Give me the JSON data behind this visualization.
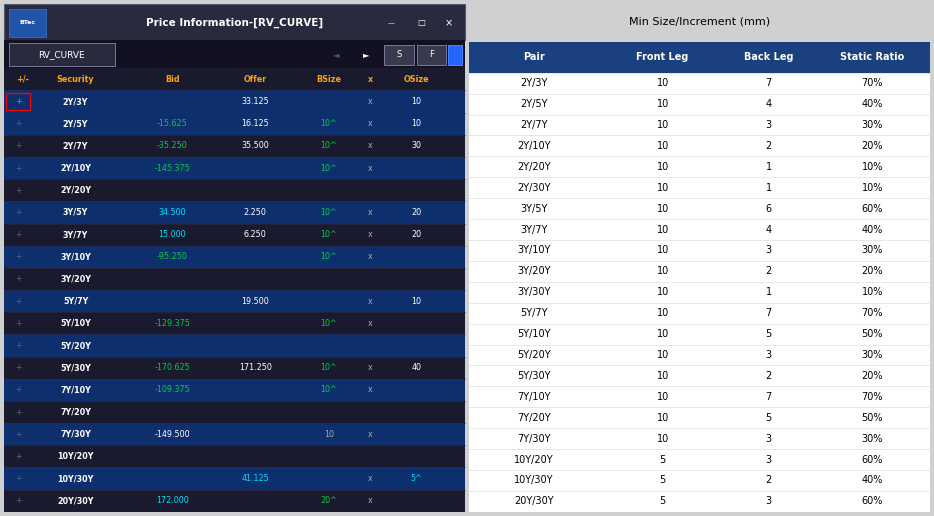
{
  "left_table": {
    "title": "Price Information-[RV_CURVE]",
    "tab_label": "RV_CURVE",
    "columns": [
      "+/-",
      "Security",
      "Bid",
      "Offer",
      "BSize",
      "x",
      "OSize"
    ],
    "rows": [
      {
        "security": "2Y/3Y",
        "bid": "",
        "offer": "33.125",
        "bsize": "",
        "x": "x",
        "osize": "10",
        "bid_color": "green",
        "offer_color": "white",
        "bsize_color": "green",
        "osize_color": "white",
        "row_bg": "blue"
      },
      {
        "security": "2Y/5Y",
        "bid": "-15.625",
        "offer": "16.125",
        "bsize": "10^",
        "x": "x",
        "osize": "10",
        "bid_color": "green",
        "offer_color": "white",
        "bsize_color": "green",
        "osize_color": "white",
        "row_bg": "blue"
      },
      {
        "security": "2Y/7Y",
        "bid": "-35.250",
        "offer": "35.500",
        "bsize": "10^",
        "x": "x",
        "osize": "30",
        "bid_color": "green",
        "offer_color": "white",
        "bsize_color": "green",
        "osize_color": "white",
        "row_bg": "dark"
      },
      {
        "security": "2Y/10Y",
        "bid": "-145.375",
        "offer": "",
        "bsize": "10^",
        "x": "x",
        "osize": "",
        "bid_color": "green",
        "offer_color": "white",
        "bsize_color": "green",
        "osize_color": "white",
        "row_bg": "blue"
      },
      {
        "security": "2Y/20Y",
        "bid": "",
        "offer": "",
        "bsize": "",
        "x": "",
        "osize": "",
        "bid_color": "white",
        "offer_color": "white",
        "bsize_color": "white",
        "osize_color": "white",
        "row_bg": "dark"
      },
      {
        "security": "3Y/5Y",
        "bid": "34.500",
        "offer": "2.250",
        "bsize": "10^",
        "x": "x",
        "osize": "20",
        "bid_color": "cyan",
        "offer_color": "white",
        "bsize_color": "green",
        "osize_color": "white",
        "row_bg": "blue"
      },
      {
        "security": "3Y/7Y",
        "bid": "15.000",
        "offer": "6.250",
        "bsize": "10^",
        "x": "x",
        "osize": "20",
        "bid_color": "cyan",
        "offer_color": "white",
        "bsize_color": "green",
        "osize_color": "white",
        "row_bg": "dark"
      },
      {
        "security": "3Y/10Y",
        "bid": "-95.250",
        "offer": "",
        "bsize": "10^",
        "x": "x",
        "osize": "",
        "bid_color": "green",
        "offer_color": "white",
        "bsize_color": "green",
        "osize_color": "white",
        "row_bg": "blue"
      },
      {
        "security": "3Y/20Y",
        "bid": "",
        "offer": "",
        "bsize": "",
        "x": "",
        "osize": "",
        "bid_color": "white",
        "offer_color": "white",
        "bsize_color": "white",
        "osize_color": "white",
        "row_bg": "dark"
      },
      {
        "security": "5Y/7Y",
        "bid": "",
        "offer": "19.500",
        "bsize": "",
        "x": "x",
        "osize": "10",
        "bid_color": "white",
        "offer_color": "white",
        "bsize_color": "white",
        "osize_color": "white",
        "row_bg": "blue"
      },
      {
        "security": "5Y/10Y",
        "bid": "-129.375",
        "offer": "",
        "bsize": "10^",
        "x": "x",
        "osize": "",
        "bid_color": "green",
        "offer_color": "white",
        "bsize_color": "green",
        "osize_color": "white",
        "row_bg": "dark"
      },
      {
        "security": "5Y/20Y",
        "bid": "",
        "offer": "",
        "bsize": "",
        "x": "",
        "osize": "",
        "bid_color": "white",
        "offer_color": "white",
        "bsize_color": "white",
        "osize_color": "white",
        "row_bg": "blue"
      },
      {
        "security": "5Y/30Y",
        "bid": "-170.625",
        "offer": "171.250",
        "bsize": "10^",
        "x": "x",
        "osize": "40",
        "bid_color": "green",
        "offer_color": "white",
        "bsize_color": "green",
        "osize_color": "white",
        "row_bg": "dark"
      },
      {
        "security": "7Y/10Y",
        "bid": "-109.375",
        "offer": "",
        "bsize": "10^",
        "x": "x",
        "osize": "",
        "bid_color": "green",
        "offer_color": "white",
        "bsize_color": "green",
        "osize_color": "white",
        "row_bg": "blue"
      },
      {
        "security": "7Y/20Y",
        "bid": "",
        "offer": "",
        "bsize": "",
        "x": "",
        "osize": "",
        "bid_color": "white",
        "offer_color": "white",
        "bsize_color": "white",
        "osize_color": "white",
        "row_bg": "dark"
      },
      {
        "security": "7Y/30Y",
        "bid": "-149.500",
        "offer": "",
        "bsize": "10",
        "x": "x",
        "osize": "",
        "bid_color": "white",
        "offer_color": "white",
        "bsize_color": "gray",
        "osize_color": "white",
        "row_bg": "blue"
      },
      {
        "security": "10Y/20Y",
        "bid": "",
        "offer": "",
        "bsize": "",
        "x": "",
        "osize": "",
        "bid_color": "white",
        "offer_color": "white",
        "bsize_color": "white",
        "osize_color": "white",
        "row_bg": "dark"
      },
      {
        "security": "10Y/30Y",
        "bid": "",
        "offer": "41.125",
        "bsize": "",
        "x": "x",
        "osize": "5^",
        "bid_color": "white",
        "offer_color": "cyan",
        "bsize_color": "white",
        "osize_color": "cyan",
        "row_bg": "blue"
      },
      {
        "security": "20Y/30Y",
        "bid": "172.000",
        "offer": "",
        "bsize": "20^",
        "x": "x",
        "osize": "",
        "bid_color": "cyan",
        "offer_color": "white",
        "bsize_color": "green",
        "osize_color": "white",
        "row_bg": "dark"
      }
    ],
    "bg_dark": "#1a1a2e",
    "bg_blue": "#0d2f6e",
    "header_text": "#ffa500"
  },
  "right_table": {
    "supertitle": "Min Size/Increment (mm)",
    "columns": [
      "Pair",
      "Front Leg",
      "Back Leg",
      "Static Ratio"
    ],
    "header_bg": "#1a4080",
    "rows": [
      [
        "2Y/3Y",
        "10",
        "7",
        "70%"
      ],
      [
        "2Y/5Y",
        "10",
        "4",
        "40%"
      ],
      [
        "2Y/7Y",
        "10",
        "3",
        "30%"
      ],
      [
        "2Y/10Y",
        "10",
        "2",
        "20%"
      ],
      [
        "2Y/20Y",
        "10",
        "1",
        "10%"
      ],
      [
        "2Y/30Y",
        "10",
        "1",
        "10%"
      ],
      [
        "3Y/5Y",
        "10",
        "6",
        "60%"
      ],
      [
        "3Y/7Y",
        "10",
        "4",
        "40%"
      ],
      [
        "3Y/10Y",
        "10",
        "3",
        "30%"
      ],
      [
        "3Y/20Y",
        "10",
        "2",
        "20%"
      ],
      [
        "3Y/30Y",
        "10",
        "1",
        "10%"
      ],
      [
        "5Y/7Y",
        "10",
        "7",
        "70%"
      ],
      [
        "5Y/10Y",
        "10",
        "5",
        "50%"
      ],
      [
        "5Y/20Y",
        "10",
        "3",
        "30%"
      ],
      [
        "5Y/30Y",
        "10",
        "2",
        "20%"
      ],
      [
        "7Y/10Y",
        "10",
        "7",
        "70%"
      ],
      [
        "7Y/20Y",
        "10",
        "5",
        "50%"
      ],
      [
        "7Y/30Y",
        "10",
        "3",
        "30%"
      ],
      [
        "10Y/20Y",
        "5",
        "3",
        "60%"
      ],
      [
        "10Y/30Y",
        "5",
        "2",
        "40%"
      ],
      [
        "20Y/30Y",
        "5",
        "3",
        "60%"
      ]
    ]
  }
}
